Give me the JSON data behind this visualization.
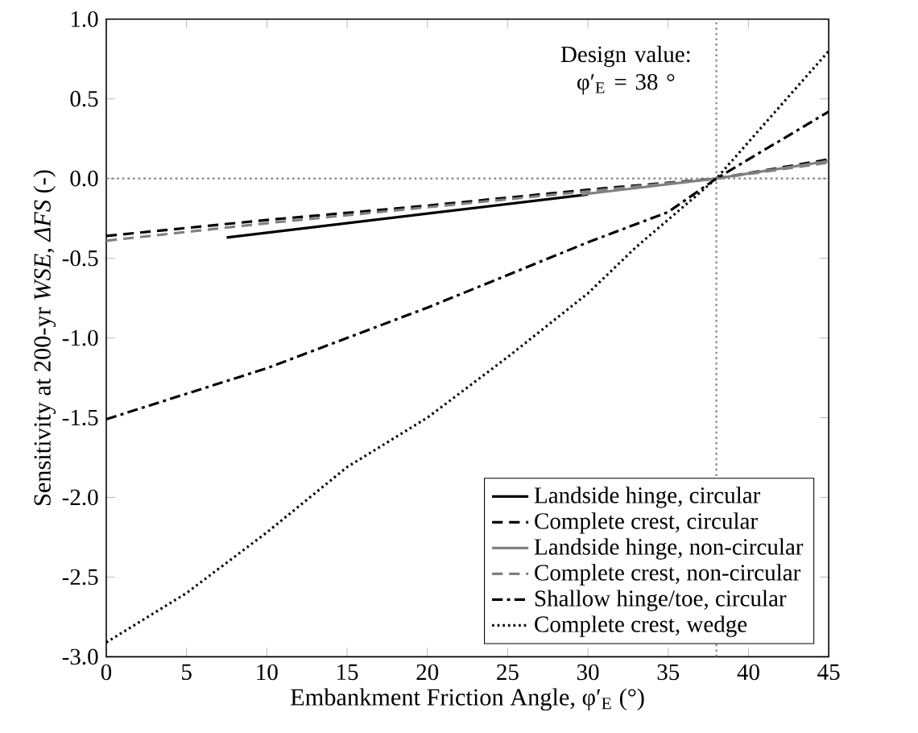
{
  "chart_data": {
    "type": "line",
    "xlabel": "Embankment Friction Angle, φ′$_{E}$ (°)",
    "ylabel": "Sensitivity at 200-yr *WSE*, *ΔFS* (-)",
    "xlim": [
      0,
      45
    ],
    "ylim": [
      -3.0,
      1.0
    ],
    "xticks": [
      0,
      5,
      10,
      15,
      20,
      25,
      30,
      35,
      40,
      45
    ],
    "yticks": [
      {
        "value": -3.0,
        "label": "-3.0"
      },
      {
        "value": -2.5,
        "label": "-2.5"
      },
      {
        "value": -2.0,
        "label": "-2.0"
      },
      {
        "value": -1.5,
        "label": "-1.5"
      },
      {
        "value": -1.0,
        "label": "-1.0"
      },
      {
        "value": -0.5,
        "label": "-0.5"
      },
      {
        "value": 0.0,
        "label": "0.0"
      },
      {
        "value": 0.5,
        "label": "0.5"
      },
      {
        "value": 1.0,
        "label": "1.0"
      }
    ],
    "grid": false,
    "legend": "bottom right",
    "ref_lines": [
      {
        "axis": "x",
        "value": 38,
        "label": "Design value: φ′$_{E}$ = 38 °",
        "color": "#808080",
        "line_style": "dotted"
      },
      {
        "axis": "y",
        "value": 0,
        "color": "#808080",
        "line_style": "dotted"
      }
    ],
    "series": [
      {
        "name": "Landside hinge, circular",
        "color": "#000000",
        "line_style": "solid",
        "x": [
          7.5,
          20,
          30
        ],
        "values": [
          -0.37,
          -0.22,
          -0.1
        ]
      },
      {
        "name": "Complete crest, circular",
        "color": "#000000",
        "line_style": "dashed",
        "x": [
          0,
          10,
          20,
          30,
          38,
          45
        ],
        "values": [
          -0.36,
          -0.26,
          -0.17,
          -0.07,
          0,
          0.12
        ]
      },
      {
        "name": "Landside hinge, non-circular",
        "color": "#808080",
        "line_style": "solid",
        "x": [
          29.6,
          38,
          45
        ],
        "values": [
          -0.1,
          0,
          0.11
        ]
      },
      {
        "name": "Complete crest, non-circular",
        "color": "#808080",
        "line_style": "dashed",
        "x": [
          0,
          10,
          20,
          30,
          38,
          45
        ],
        "values": [
          -0.39,
          -0.28,
          -0.18,
          -0.08,
          0,
          0.1
        ]
      },
      {
        "name": "Shallow hinge/toe, circular",
        "color": "#000000",
        "line_style": "dashdot",
        "x": [
          0,
          10,
          20,
          22.2,
          30,
          35,
          38,
          45
        ],
        "values": [
          -1.51,
          -1.19,
          -0.81,
          -0.72,
          -0.4,
          -0.21,
          0,
          0.42
        ]
      },
      {
        "name": "Complete crest, wedge",
        "color": "#000000",
        "line_style": "dotted",
        "x": [
          0,
          5,
          10,
          15,
          20,
          25,
          30,
          33,
          38,
          45
        ],
        "values": [
          -2.91,
          -2.6,
          -2.22,
          -1.81,
          -1.5,
          -1.12,
          -0.72,
          -0.43,
          0,
          0.8
        ]
      }
    ]
  }
}
